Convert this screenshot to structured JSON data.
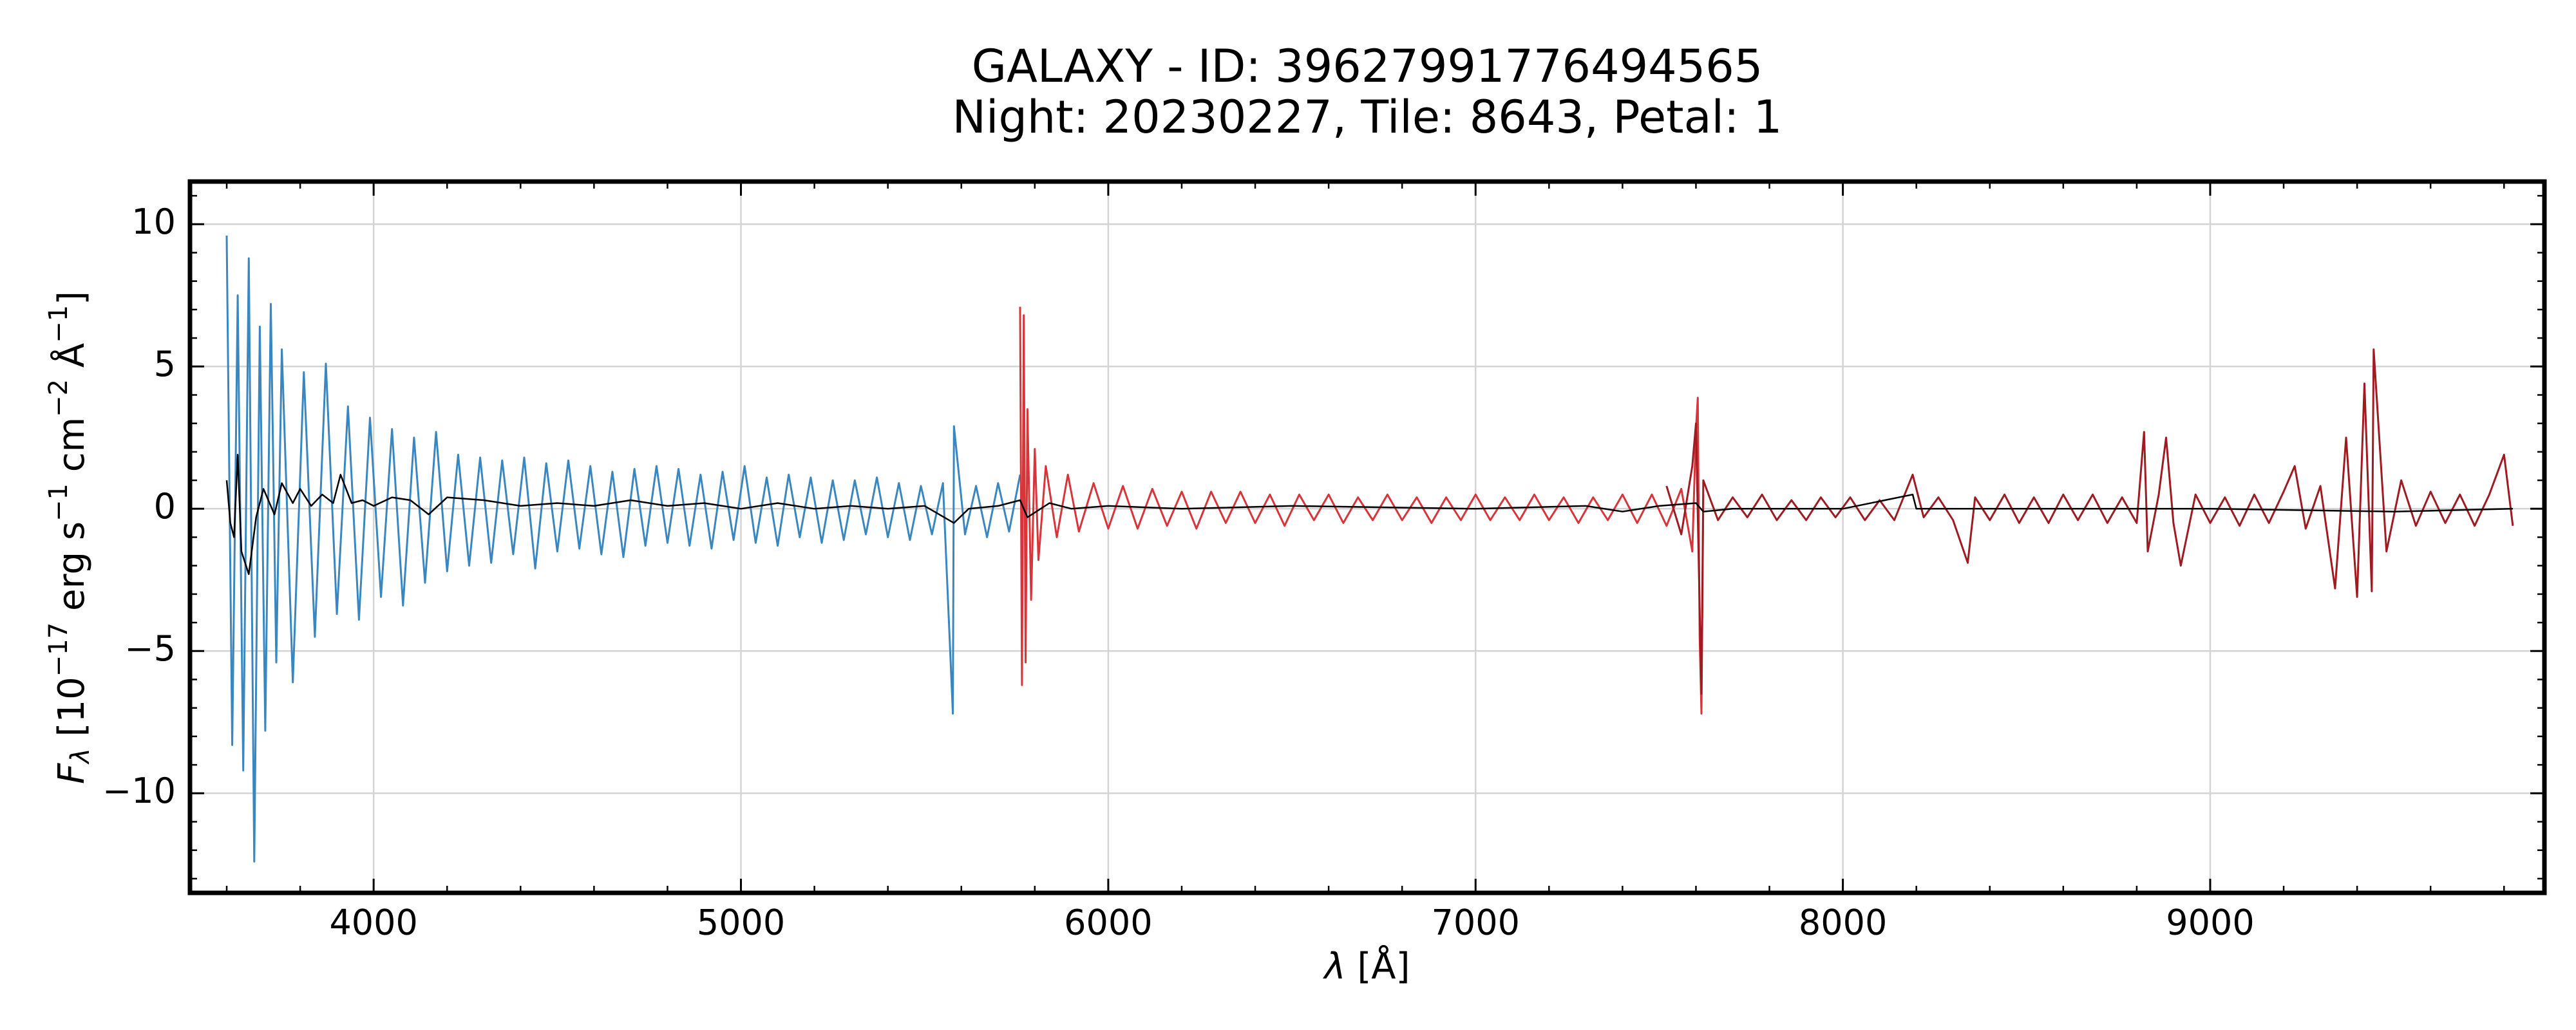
{
  "chart_data": {
    "type": "line",
    "title": [
      "GALAXY - ID: 39627991776494565",
      "Night: 20230227, Tile: 8643, Petal: 1"
    ],
    "xlabel": [
      "λ",
      " [Å]"
    ],
    "ylabel": [
      "F",
      "λ",
      " [10",
      "−17",
      " erg s",
      "−1",
      " cm",
      "−2",
      " Å",
      "−1",
      "]"
    ],
    "xlim": [
      3500,
      9910
    ],
    "ylim": [
      -13.5,
      11.5
    ],
    "xticks": [
      4000,
      5000,
      6000,
      7000,
      8000,
      9000
    ],
    "yticks": [
      {
        "value": -10,
        "label": "−10"
      },
      {
        "value": -5,
        "label": "−5"
      },
      0,
      5,
      10
    ],
    "minor_ticks": {
      "x": 200,
      "y": 1
    },
    "grid": true,
    "series": [
      {
        "color": "#3a87c0",
        "x": [
          3600,
          3615,
          3630,
          3645,
          3660,
          3675,
          3690,
          3705,
          3720,
          3735,
          3750,
          3780,
          3810,
          3840,
          3870,
          3900,
          3930,
          3960,
          3990,
          4020,
          4050,
          4080,
          4110,
          4140,
          4170,
          4200,
          4230,
          4260,
          4290,
          4320,
          4350,
          4380,
          4410,
          4440,
          4470,
          4500,
          4530,
          4560,
          4590,
          4620,
          4650,
          4680,
          4710,
          4740,
          4770,
          4800,
          4830,
          4860,
          4890,
          4920,
          4950,
          4980,
          5010,
          5040,
          5070,
          5100,
          5130,
          5160,
          5190,
          5220,
          5250,
          5280,
          5310,
          5340,
          5370,
          5400,
          5430,
          5460,
          5490,
          5520,
          5550,
          5577,
          5580,
          5610,
          5640,
          5670,
          5700,
          5730,
          5760
        ],
        "values": [
          9.6,
          -8.3,
          7.5,
          -9.2,
          8.8,
          -12.4,
          6.4,
          -7.8,
          7.2,
          -5.4,
          5.6,
          -6.1,
          4.8,
          -4.5,
          5.1,
          -3.7,
          3.6,
          -3.9,
          3.2,
          -3.1,
          2.8,
          -3.4,
          2.5,
          -2.6,
          2.7,
          -2.2,
          1.9,
          -2.0,
          1.8,
          -1.9,
          1.7,
          -1.6,
          1.8,
          -2.1,
          1.6,
          -1.5,
          1.7,
          -1.4,
          1.5,
          -1.6,
          1.3,
          -1.7,
          1.4,
          -1.3,
          1.5,
          -1.2,
          1.4,
          -1.3,
          1.2,
          -1.4,
          1.3,
          -1.1,
          1.5,
          -1.2,
          1.1,
          -1.3,
          1.2,
          -1.0,
          1.1,
          -1.2,
          1.0,
          -1.1,
          1.0,
          -0.9,
          1.1,
          -1.0,
          0.9,
          -1.1,
          0.8,
          -0.9,
          0.9,
          -7.2,
          2.9,
          -0.9,
          0.8,
          -1.0,
          0.9,
          -0.8,
          1.2
        ]
      },
      {
        "color": "#d8353a",
        "x": [
          5760,
          5765,
          5770,
          5775,
          5780,
          5790,
          5800,
          5810,
          5830,
          5860,
          5890,
          5920,
          5960,
          6000,
          6040,
          6080,
          6120,
          6160,
          6200,
          6240,
          6280,
          6320,
          6360,
          6400,
          6440,
          6480,
          6520,
          6560,
          6600,
          6640,
          6680,
          6720,
          6760,
          6800,
          6840,
          6880,
          6920,
          6960,
          7000,
          7040,
          7080,
          7120,
          7160,
          7200,
          7240,
          7280,
          7320,
          7360,
          7400,
          7440,
          7480,
          7520,
          7560,
          7590,
          7600,
          7605,
          7610,
          7615,
          7620
        ],
        "values": [
          7.1,
          -6.2,
          6.8,
          -5.4,
          3.5,
          -3.2,
          2.1,
          -1.8,
          1.5,
          -1.0,
          1.2,
          -0.8,
          0.9,
          -0.7,
          0.8,
          -0.7,
          0.7,
          -0.6,
          0.6,
          -0.7,
          0.6,
          -0.5,
          0.6,
          -0.5,
          0.5,
          -0.6,
          0.5,
          -0.4,
          0.5,
          -0.5,
          0.4,
          -0.4,
          0.5,
          -0.4,
          0.4,
          -0.5,
          0.4,
          -0.4,
          0.5,
          -0.4,
          0.4,
          -0.4,
          0.5,
          -0.4,
          0.4,
          -0.5,
          0.4,
          -0.4,
          0.5,
          -0.5,
          0.5,
          -0.6,
          0.7,
          -1.5,
          2.8,
          3.9,
          -4.5,
          -7.2,
          0.5
        ]
      },
      {
        "color": "#9e1b22",
        "x": [
          7520,
          7560,
          7590,
          7600,
          7610,
          7615,
          7620,
          7660,
          7700,
          7740,
          7780,
          7820,
          7860,
          7900,
          7940,
          7980,
          8020,
          8060,
          8100,
          8140,
          8190,
          8220,
          8260,
          8300,
          8340,
          8360,
          8400,
          8440,
          8480,
          8520,
          8560,
          8600,
          8640,
          8680,
          8720,
          8760,
          8800,
          8820,
          8830,
          8860,
          8880,
          8900,
          8920,
          8960,
          9000,
          9040,
          9080,
          9120,
          9160,
          9200,
          9230,
          9260,
          9300,
          9340,
          9370,
          9400,
          9420,
          9440,
          9445,
          9480,
          9520,
          9560,
          9600,
          9640,
          9680,
          9720,
          9760,
          9800,
          9824
        ],
        "values": [
          0.8,
          -0.9,
          1.5,
          3.0,
          -3.5,
          -6.5,
          1.0,
          -0.4,
          0.4,
          -0.3,
          0.5,
          -0.4,
          0.3,
          -0.4,
          0.4,
          -0.3,
          0.4,
          -0.4,
          0.3,
          -0.4,
          1.2,
          -0.3,
          0.4,
          -0.4,
          -1.9,
          0.4,
          -0.4,
          0.5,
          -0.5,
          0.4,
          -0.5,
          0.5,
          -0.4,
          0.5,
          -0.5,
          0.4,
          -0.5,
          2.7,
          -1.5,
          0.5,
          2.5,
          -0.5,
          -2.0,
          0.5,
          -0.5,
          0.4,
          -0.6,
          0.5,
          -0.5,
          0.6,
          1.5,
          -0.7,
          0.8,
          -2.8,
          2.5,
          -3.1,
          4.4,
          -2.9,
          5.6,
          -1.5,
          1.0,
          -0.6,
          0.6,
          -0.5,
          0.5,
          -0.6,
          0.5,
          1.9,
          -0.6
        ]
      },
      {
        "color": "#000000",
        "x": [
          3600,
          3610,
          3620,
          3630,
          3640,
          3660,
          3680,
          3700,
          3730,
          3750,
          3780,
          3800,
          3830,
          3860,
          3890,
          3910,
          3940,
          3970,
          4000,
          4050,
          4100,
          4150,
          4200,
          4300,
          4400,
          4500,
          4600,
          4700,
          4800,
          4900,
          5000,
          5100,
          5200,
          5300,
          5400,
          5500,
          5580,
          5620,
          5700,
          5760,
          5780,
          5840,
          5900,
          6000,
          6200,
          6500,
          7000,
          7300,
          7400,
          7500,
          7600,
          7620,
          7700,
          8000,
          8190,
          8200,
          8500,
          9000,
          9500,
          9824
        ],
        "values": [
          1.0,
          -0.5,
          -1.0,
          1.9,
          -1.5,
          -2.3,
          -0.3,
          0.7,
          -0.2,
          0.9,
          0.2,
          0.7,
          0.1,
          0.5,
          0.2,
          1.2,
          0.2,
          0.3,
          0.1,
          0.4,
          0.3,
          -0.2,
          0.4,
          0.3,
          0.1,
          0.2,
          0.1,
          0.3,
          0.1,
          0.2,
          0.0,
          0.2,
          0.0,
          0.1,
          0.0,
          0.1,
          -0.5,
          0.0,
          0.1,
          0.3,
          -0.3,
          0.2,
          0.0,
          0.1,
          0.0,
          0.1,
          0.0,
          0.1,
          -0.1,
          0.1,
          0.2,
          -0.1,
          0.0,
          0.0,
          0.5,
          0.0,
          0.0,
          0.0,
          -0.1,
          0.0
        ]
      }
    ]
  }
}
